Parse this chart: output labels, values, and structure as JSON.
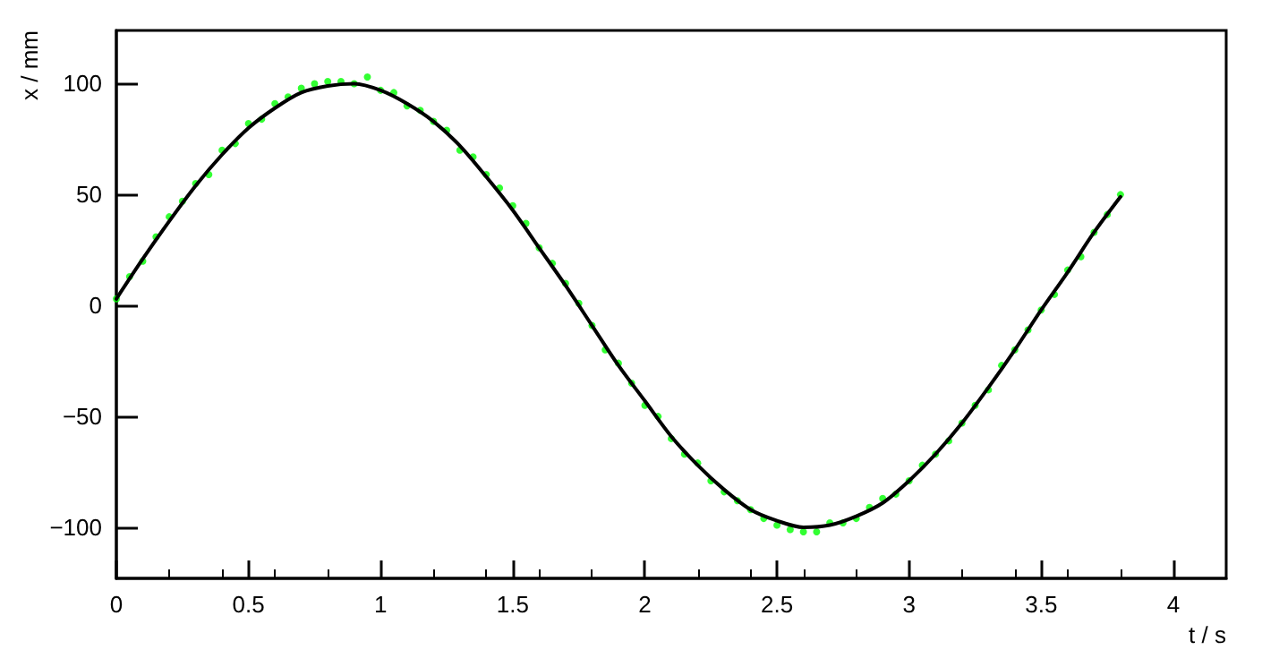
{
  "chart_data": {
    "type": "scatter",
    "xlabel": "t / s",
    "ylabel": "x / mm",
    "xlim": [
      0,
      4.2
    ],
    "xticks": [
      0,
      0.5,
      1,
      1.5,
      2,
      2.5,
      3,
      3.5,
      4
    ],
    "ylim": [
      -123,
      124
    ],
    "yticks": [
      -100,
      -50,
      0,
      50,
      100
    ],
    "marker": "circle",
    "series": [
      {
        "color": "#00ff00",
        "x": [
          0,
          0.05,
          0.1,
          0.15,
          0.2,
          0.25,
          0.3,
          0.35,
          0.4,
          0.45,
          0.5,
          0.55,
          0.6,
          0.65,
          0.7,
          0.75,
          0.8,
          0.85,
          0.9,
          0.95,
          1,
          1.05,
          1.1,
          1.15,
          1.2,
          1.25,
          1.3,
          1.35,
          1.4,
          1.45,
          1.5,
          1.55,
          1.6,
          1.65,
          1.7,
          1.75,
          1.8,
          1.85,
          1.9,
          1.95,
          2,
          2.05,
          2.1,
          2.15,
          2.2,
          2.25,
          2.3,
          2.35,
          2.4,
          2.45,
          2.5,
          2.55,
          2.6,
          2.65,
          2.7,
          2.75,
          2.8,
          2.85,
          2.9,
          2.95,
          3,
          3.05,
          3.1,
          3.15,
          3.2,
          3.25,
          3.3,
          3.35,
          3.4,
          3.45,
          3.5,
          3.55,
          3.6,
          3.65,
          3.7,
          3.75,
          3.8
        ],
        "values": [
          3,
          13,
          20,
          31,
          40,
          47,
          55,
          59,
          70,
          73,
          82,
          84,
          91,
          94,
          98,
          100,
          101,
          101,
          100,
          103,
          97,
          96,
          90,
          88,
          83,
          79,
          70,
          67,
          59,
          53,
          45,
          37,
          26,
          19,
          10,
          1,
          -9,
          -20,
          -26,
          -35,
          -45,
          -50,
          -60,
          -67,
          -71,
          -79,
          -84,
          -88,
          -92,
          -96,
          -99,
          -101,
          -102,
          -102,
          -98,
          -98,
          -96,
          -91,
          -87,
          -85,
          -79,
          -72,
          -67,
          -61,
          -53,
          -45,
          -38,
          -27,
          -20,
          -11,
          -2,
          5,
          16,
          22,
          33,
          41,
          50
        ]
      },
      {
        "type": "line",
        "color": "#000000",
        "marker": "none",
        "x": [
          0,
          0.1,
          0.2,
          0.3,
          0.4,
          0.5,
          0.6,
          0.7,
          0.8,
          0.9,
          1,
          1.1,
          1.2,
          1.3,
          1.4,
          1.5,
          1.6,
          1.7,
          1.8,
          1.9,
          2,
          2.1,
          2.2,
          2.3,
          2.4,
          2.5,
          2.6,
          2.7,
          2.8,
          2.9,
          3,
          3.1,
          3.2,
          3.3,
          3.4,
          3.5,
          3.6,
          3.7,
          3.8
        ],
        "values": [
          3,
          21,
          38,
          54,
          68,
          80,
          89,
          96,
          99,
          100,
          97,
          91,
          83,
          72,
          58,
          43,
          26,
          9,
          -9,
          -27,
          -43,
          -59,
          -72,
          -83,
          -92,
          -97,
          -100,
          -99,
          -95,
          -89,
          -79,
          -67,
          -53,
          -37,
          -20,
          -2,
          15,
          33,
          49
        ]
      }
    ]
  }
}
